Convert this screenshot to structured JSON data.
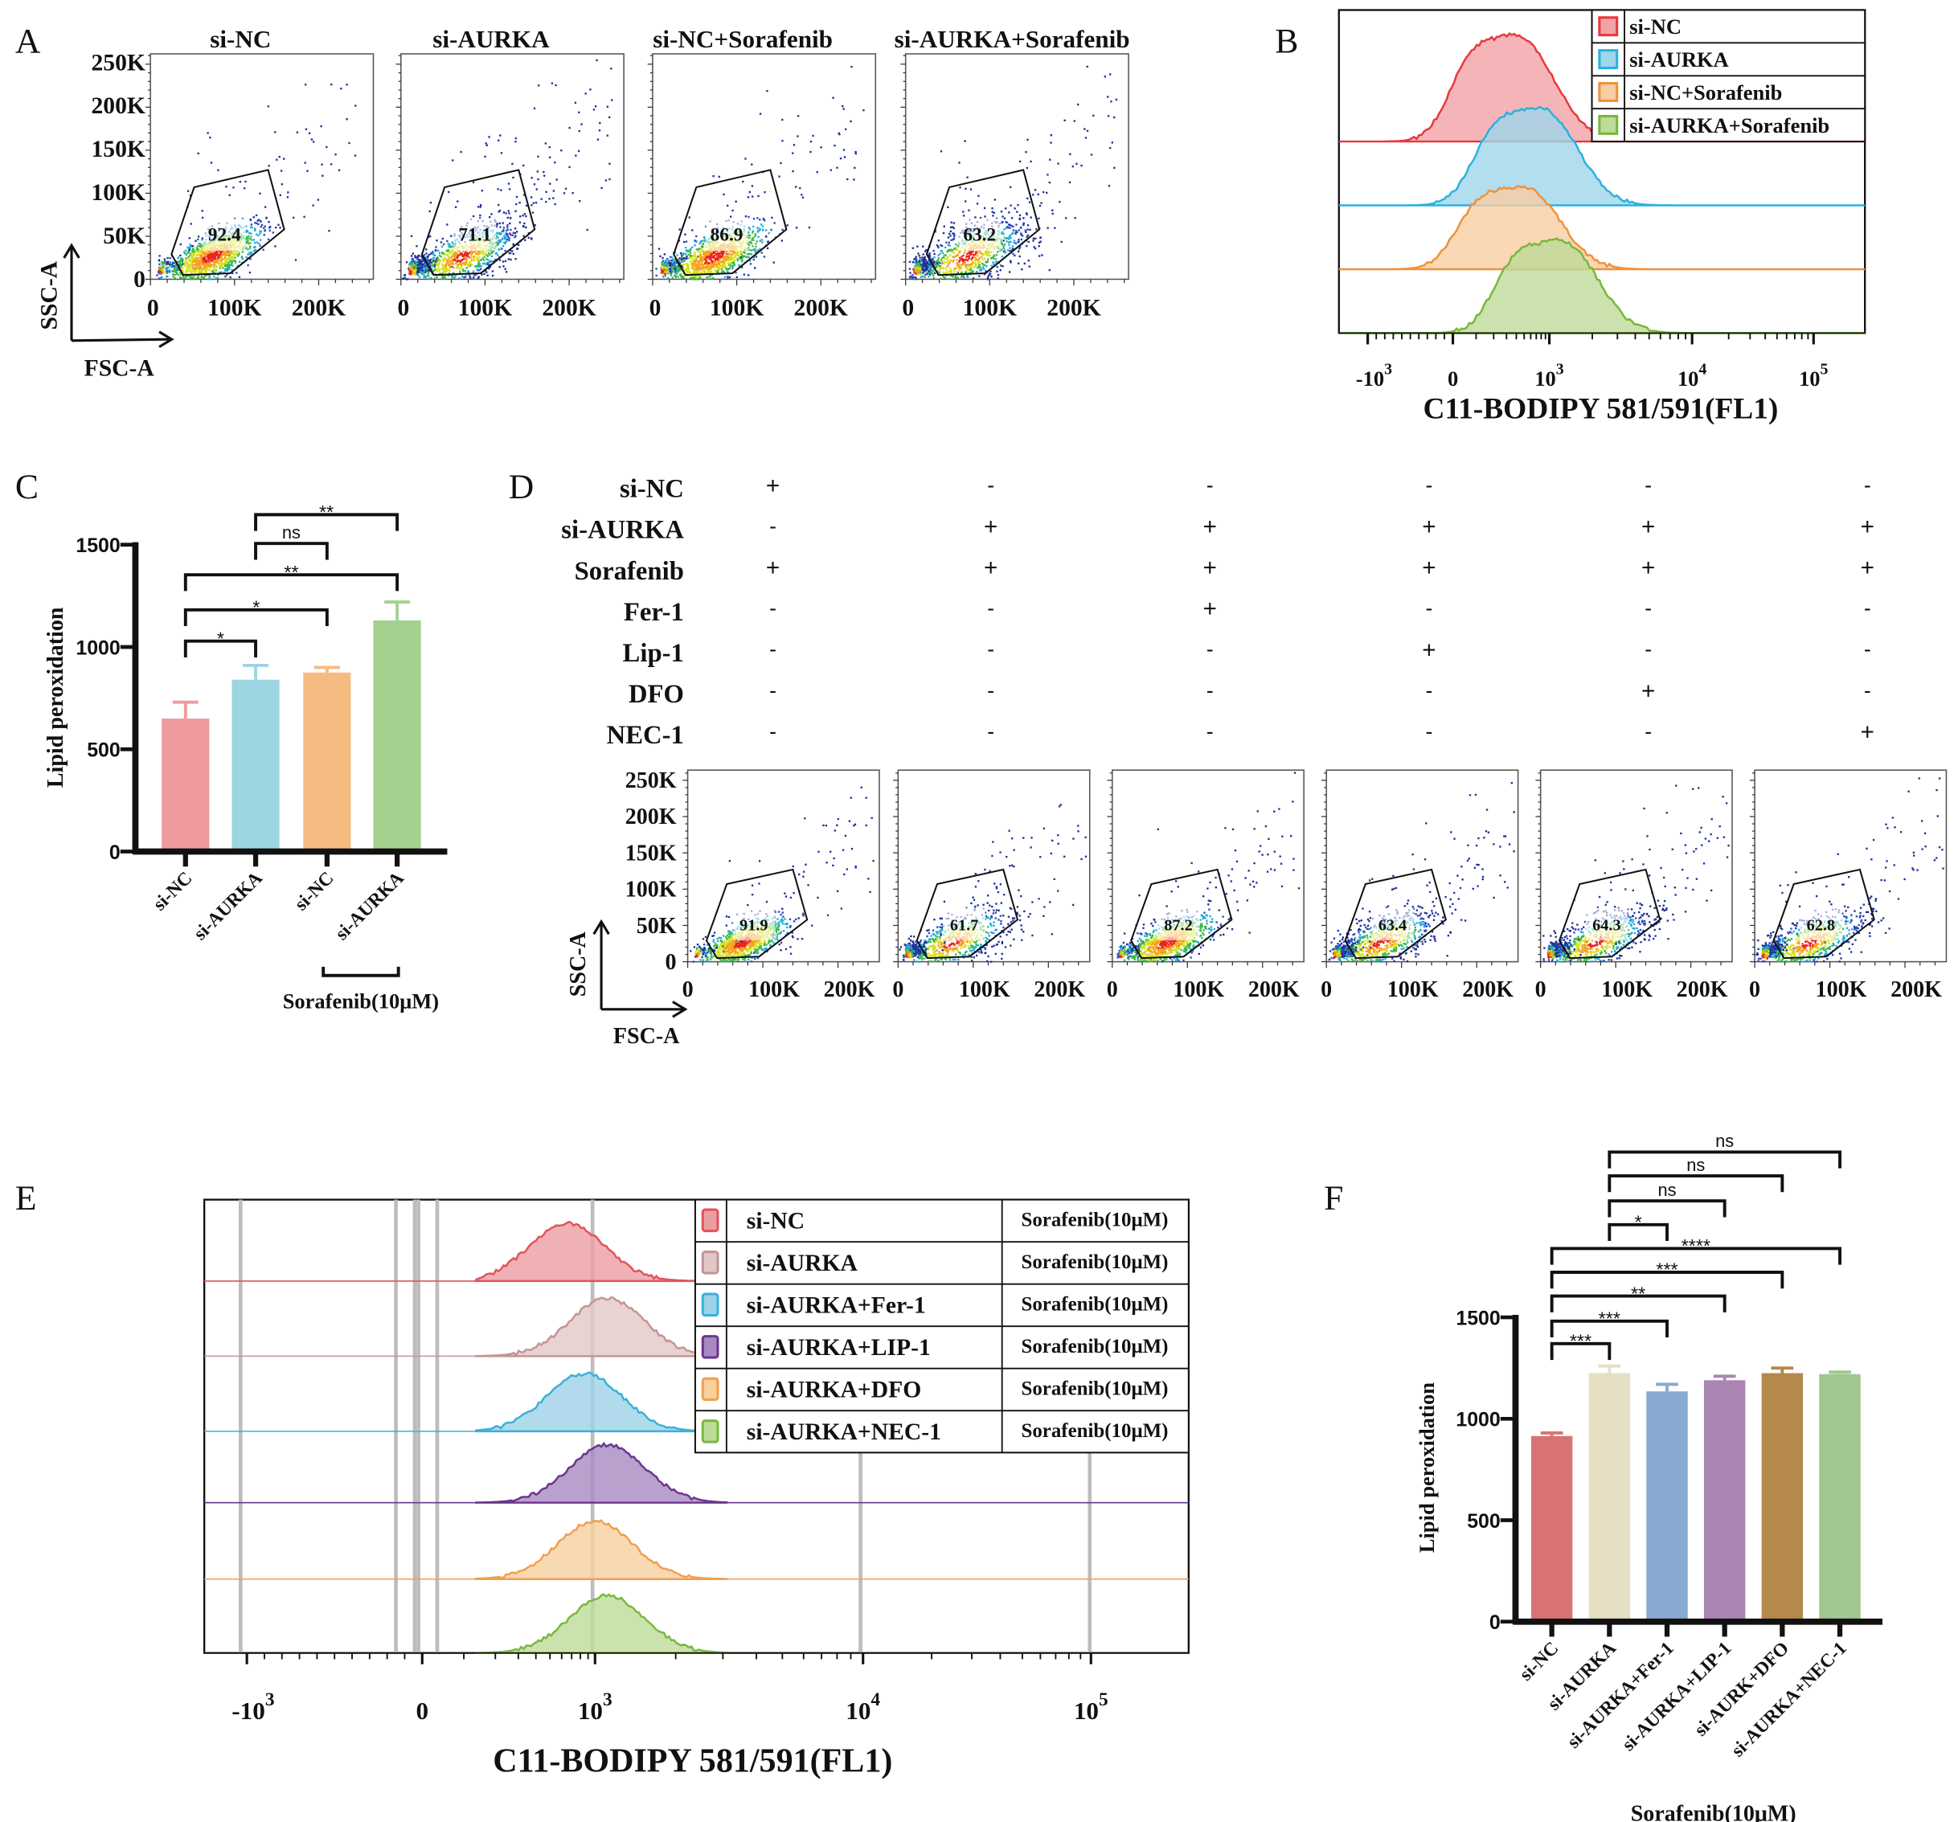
{
  "panel_labels": [
    "A",
    "B",
    "C",
    "D",
    "E",
    "F"
  ],
  "panelD_table": {
    "rows": [
      {
        "label": "si-NC",
        "signs": [
          "+",
          "-",
          "-",
          "-",
          "-",
          "-"
        ]
      },
      {
        "label": "si-AURKA",
        "signs": [
          "-",
          "+",
          "+",
          "+",
          "+",
          "+"
        ]
      },
      {
        "label": "Sorafenib",
        "signs": [
          "+",
          "+",
          "+",
          "+",
          "+",
          "+"
        ]
      },
      {
        "label": "Fer-1",
        "signs": [
          "-",
          "-",
          "+",
          "-",
          "-",
          "-"
        ]
      },
      {
        "label": "Lip-1",
        "signs": [
          "-",
          "-",
          "-",
          "+",
          "-",
          "-"
        ]
      },
      {
        "label": "DFO",
        "signs": [
          "-",
          "-",
          "-",
          "-",
          "+",
          "-"
        ]
      },
      {
        "label": "NEC-1",
        "signs": [
          "-",
          "-",
          "-",
          "-",
          "-",
          "+"
        ]
      }
    ]
  },
  "chart_data": [
    {
      "panel": "A",
      "type": "scatter",
      "xlabel": "FSC-A",
      "ylabel": "SSC-A",
      "x_ticks": [
        "0",
        "100K",
        "200K"
      ],
      "y_ticks": [
        "0",
        "50K",
        "100K",
        "150K",
        "200K",
        "250K"
      ],
      "xlim": [
        0,
        265000
      ],
      "ylim": [
        0,
        262000
      ],
      "subplots": [
        {
          "title": "si-NC",
          "gate_percent": "92.4"
        },
        {
          "title": "si-AURKA",
          "gate_percent": "71.1"
        },
        {
          "title": "si-NC+Sorafenib",
          "gate_percent": "86.9"
        },
        {
          "title": "si-AURKA+Sorafenib",
          "gate_percent": "63.2"
        }
      ]
    },
    {
      "panel": "B",
      "type": "area",
      "xlabel": "C11-BODIPY 581/591(FL1)",
      "x_scale": "biexponential",
      "x_ticks": [
        {
          "base": "-10",
          "exp": "3"
        },
        {
          "base": "0",
          "exp": ""
        },
        {
          "base": "10",
          "exp": "3"
        },
        {
          "base": "10",
          "exp": "4"
        },
        {
          "base": "10",
          "exp": "5"
        }
      ],
      "legend": "top-right",
      "series": [
        {
          "name": "si-NC",
          "stroke": "#e8383d",
          "fill": "#f2a3a6",
          "mode": 470
        },
        {
          "name": "si-AURKA",
          "stroke": "#2bb1e0",
          "fill": "#9fd6ea",
          "mode": 900
        },
        {
          "name": "si-NC+Sorafenib",
          "stroke": "#f0923a",
          "fill": "#f9cda3",
          "mode": 560
        },
        {
          "name": "si-AURKA+Sorafenib",
          "stroke": "#78b83a",
          "fill": "#bedb9a",
          "mode": 1300
        }
      ]
    },
    {
      "panel": "C",
      "type": "bar",
      "ylabel": "Lipid peroxidation",
      "ylim": [
        0,
        1500
      ],
      "y_ticks": [
        "0",
        "500",
        "1000",
        "1500"
      ],
      "categories": [
        "si-NC",
        "si-AURKA",
        "si-NC",
        "si-AURKA"
      ],
      "values": [
        650,
        840,
        875,
        1130
      ],
      "errors": [
        80,
        70,
        25,
        90
      ],
      "colors": [
        "#ef9a9d",
        "#9dd5e0",
        "#f6bb80",
        "#a5d18f"
      ],
      "group_label": "Sorafenib(10μM)",
      "comparisons": [
        {
          "a": 0,
          "b": 1,
          "label": "*"
        },
        {
          "a": 0,
          "b": 2,
          "label": "*"
        },
        {
          "a": 0,
          "b": 3,
          "label": "**"
        },
        {
          "a": 1,
          "b": 2,
          "label": "ns"
        },
        {
          "a": 1,
          "b": 3,
          "label": "**"
        }
      ]
    },
    {
      "panel": "D",
      "type": "scatter",
      "xlabel": "FSC-A",
      "ylabel": "SSC-A",
      "x_ticks": [
        "0",
        "100K",
        "200K"
      ],
      "y_ticks": [
        "0",
        "50K",
        "100K",
        "150K",
        "200K",
        "250K"
      ],
      "xlim": [
        0,
        255000
      ],
      "ylim": [
        0,
        264000
      ],
      "subplots": [
        {
          "gate_percent": "91.9"
        },
        {
          "gate_percent": "61.7"
        },
        {
          "gate_percent": "87.2"
        },
        {
          "gate_percent": "63.4"
        },
        {
          "gate_percent": "64.3"
        },
        {
          "gate_percent": "62.8"
        }
      ]
    },
    {
      "panel": "E",
      "type": "area",
      "xlabel": "C11-BODIPY 581/591(FL1)",
      "x_scale": "biexponential",
      "x_ticks": [
        {
          "base": "-10",
          "exp": "3"
        },
        {
          "base": "0",
          "exp": ""
        },
        {
          "base": "10",
          "exp": "3"
        },
        {
          "base": "10",
          "exp": "4"
        },
        {
          "base": "10",
          "exp": "5"
        }
      ],
      "legend": "top-right",
      "series": [
        {
          "name": "si-NC",
          "treatment": "Sorafenib(10μM)",
          "stroke": "#e0555b",
          "fill": "#eb9ea1",
          "mode": 650
        },
        {
          "name": "si-AURKA",
          "treatment": "Sorafenib(10μM)",
          "stroke": "#c39595",
          "fill": "#e3c7c7",
          "mode": 1110
        },
        {
          "name": "si-AURKA+Fer-1",
          "treatment": "Sorafenib(10μM)",
          "stroke": "#3bb0da",
          "fill": "#9dd2e7",
          "mode": 850
        },
        {
          "name": "si-AURKA+LIP-1",
          "treatment": "Sorafenib(10μM)",
          "stroke": "#6e3590",
          "fill": "#a78ac2",
          "mode": 1110
        },
        {
          "name": "si-AURKA+DFO",
          "treatment": "Sorafenib(10μM)",
          "stroke": "#f0a050",
          "fill": "#f8cf9d",
          "mode": 1000
        },
        {
          "name": "si-AURKA+NEC-1",
          "treatment": "Sorafenib(10μM)",
          "stroke": "#7ab840",
          "fill": "#bddc99",
          "mode": 1110
        }
      ]
    },
    {
      "panel": "F",
      "type": "bar",
      "ylabel": "Lipid peroxidation",
      "ylim": [
        0,
        1500
      ],
      "y_ticks": [
        "0",
        "500",
        "1000",
        "1500"
      ],
      "categories": [
        "si-NC",
        "si-AURKA",
        "si-AURKA+Fer-1",
        "si-AURKA+LIP-1",
        "si-AURK+DFO",
        "si-AURKA+NEC-1"
      ],
      "values": [
        915,
        1225,
        1135,
        1190,
        1225,
        1220
      ],
      "errors": [
        15,
        35,
        35,
        20,
        25,
        10
      ],
      "colors": [
        "#d87374",
        "#e6dfc3",
        "#88aad0",
        "#aa84b2",
        "#b5894b",
        "#9fc78f"
      ],
      "group_label": "Sorafenib(10μM)",
      "comparisons": [
        {
          "a": 0,
          "b": 1,
          "label": "***"
        },
        {
          "a": 0,
          "b": 2,
          "label": "***"
        },
        {
          "a": 0,
          "b": 3,
          "label": "**"
        },
        {
          "a": 0,
          "b": 4,
          "label": "***"
        },
        {
          "a": 0,
          "b": 5,
          "label": "****"
        },
        {
          "a": 1,
          "b": 2,
          "label": "*"
        },
        {
          "a": 1,
          "b": 3,
          "label": "ns"
        },
        {
          "a": 1,
          "b": 4,
          "label": "ns"
        },
        {
          "a": 1,
          "b": 5,
          "label": "ns"
        }
      ]
    }
  ]
}
